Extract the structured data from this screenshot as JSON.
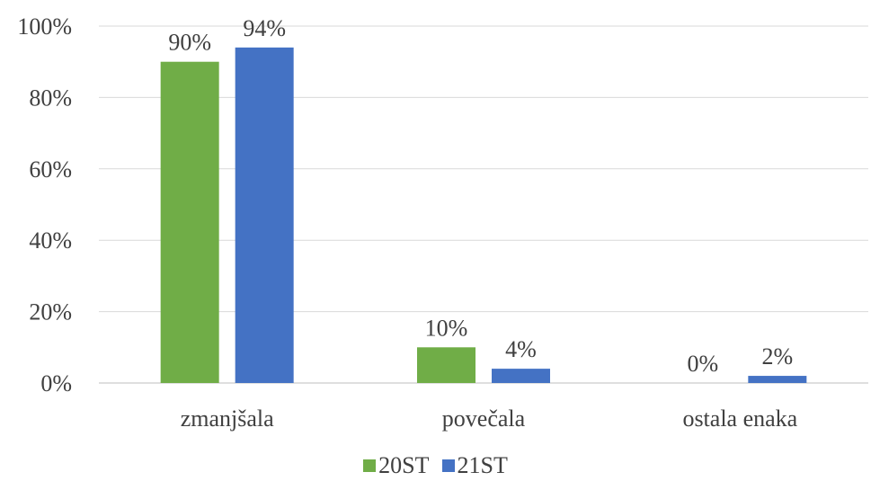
{
  "chart_data": {
    "type": "bar",
    "categories": [
      "zmanjšala",
      "povečala",
      "ostala enaka"
    ],
    "series": [
      {
        "name": "20ST",
        "values": [
          90,
          10,
          0
        ],
        "color": "#70AD47"
      },
      {
        "name": "21ST",
        "values": [
          94,
          4,
          2
        ],
        "color": "#4472C4"
      }
    ],
    "ylim": [
      0,
      100
    ],
    "yticks": [
      "0%",
      "20%",
      "40%",
      "60%",
      "80%",
      "100%"
    ],
    "data_labels": [
      [
        "90%",
        "10%",
        "0%"
      ],
      [
        "94%",
        "4%",
        "2%"
      ]
    ],
    "grid": true,
    "legend_position": "bottom"
  }
}
